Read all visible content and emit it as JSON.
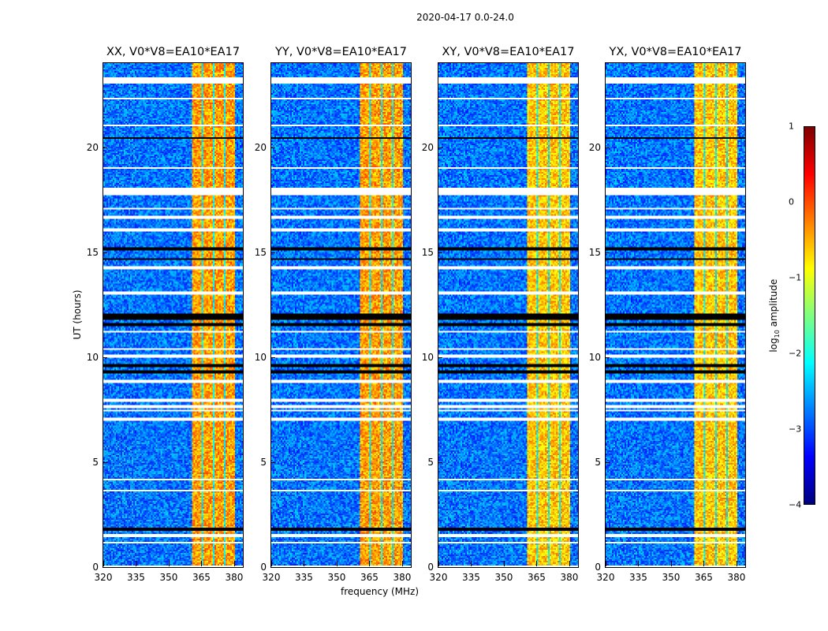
{
  "chart_data": {
    "type": "heatmap",
    "title": "2020-04-17 0.0-24.0",
    "xlabel": "frequency (MHz)",
    "ylabel": "UT (hours)",
    "xlim": [
      320,
      384
    ],
    "ylim": [
      0,
      24
    ],
    "xticks": [
      "320",
      "335",
      "350",
      "365",
      "380"
    ],
    "xtick_values": [
      320,
      335,
      350,
      365,
      380
    ],
    "yticks": [
      "0",
      "5",
      "10",
      "15",
      "20"
    ],
    "ytick_values": [
      0,
      5,
      10,
      15,
      20
    ],
    "panels": [
      {
        "title": "XX, V0*V8=EA10*EA17"
      },
      {
        "title": "YY, V0*V8=EA10*EA17"
      },
      {
        "title": "XY, V0*V8=EA10*EA17"
      },
      {
        "title": "YX, V0*V8=EA10*EA17"
      }
    ],
    "colorbar": {
      "label_prefix": "log",
      "label_sub": "10",
      "label_suffix": " amplitude",
      "range": [
        -4,
        1
      ],
      "ticks": [
        "1",
        "0",
        "−1",
        "−2",
        "−3",
        "−4"
      ],
      "tick_values": [
        1,
        0,
        -1,
        -2,
        -3,
        -4
      ],
      "colormap": "jet"
    },
    "background_level": -2.8,
    "rfi_band_mhz": [
      360.5,
      380.5
    ],
    "rfi_band_level": -0.6,
    "rfi_gaps_mhz": [
      365.3,
      370.6,
      375.8
    ],
    "flagged_white_hours": [
      [
        0,
        0.05
      ],
      [
        1.1,
        1.2
      ],
      [
        1.45,
        1.6
      ],
      [
        3.6,
        3.7
      ],
      [
        4.1,
        4.2
      ],
      [
        5.6,
        5.65
      ],
      [
        7.0,
        7.1
      ],
      [
        7.4,
        7.5
      ],
      [
        7.6,
        7.7
      ],
      [
        7.9,
        8.05
      ],
      [
        8.8,
        8.9
      ],
      [
        10.0,
        10.1
      ],
      [
        10.35,
        10.45
      ],
      [
        11.2,
        11.25
      ],
      [
        13.0,
        13.15
      ],
      [
        14.2,
        14.3
      ],
      [
        16.0,
        16.1
      ],
      [
        16.6,
        16.7
      ],
      [
        17.05,
        17.1
      ],
      [
        17.7,
        18.1
      ],
      [
        18.8,
        18.85
      ],
      [
        19.0,
        19.05
      ],
      [
        19.4,
        19.45
      ],
      [
        21.0,
        21.1
      ],
      [
        21.8,
        21.85
      ],
      [
        22.3,
        22.35
      ],
      [
        23.05,
        23.3
      ]
    ],
    "flagged_black_hours": [
      [
        1.75,
        1.85
      ],
      [
        9.2,
        9.35
      ],
      [
        9.55,
        9.65
      ],
      [
        11.45,
        11.65
      ],
      [
        11.75,
        12.05
      ],
      [
        14.6,
        14.7
      ],
      [
        15.1,
        15.2
      ],
      [
        20.4,
        20.5
      ],
      [
        23.6,
        23.65
      ]
    ]
  }
}
